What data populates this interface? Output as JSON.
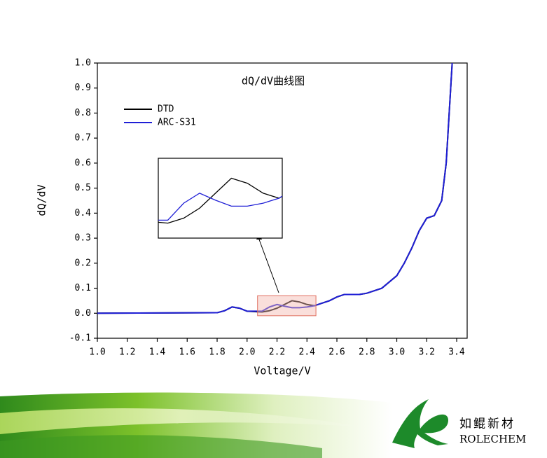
{
  "chart_data": {
    "type": "line",
    "title": "dQ/dV曲线图",
    "x_label": "Voltage/V",
    "y_label": "dQ/dV",
    "x": [
      1.0,
      1.8,
      1.85,
      1.9,
      1.95,
      2.0,
      2.1,
      2.15,
      2.2,
      2.25,
      2.3,
      2.35,
      2.4,
      2.45,
      2.5,
      2.55,
      2.6,
      2.65,
      2.7,
      2.75,
      2.8,
      2.9,
      3.0,
      3.05,
      3.1,
      3.15,
      3.2,
      3.25,
      3.3,
      3.33,
      3.35,
      3.37
    ],
    "series": [
      {
        "name": "DTD",
        "color": "#000000",
        "values": [
          0,
          0.002,
          0.01,
          0.025,
          0.02,
          0.008,
          0.005,
          0.01,
          0.02,
          0.035,
          0.05,
          0.045,
          0.035,
          0.03,
          0.04,
          0.05,
          0.065,
          0.075,
          0.075,
          0.075,
          0.08,
          0.1,
          0.15,
          0.2,
          0.26,
          0.33,
          0.38,
          0.39,
          0.45,
          0.6,
          0.8,
          1.0
        ]
      },
      {
        "name": "ARC-S31",
        "color": "#1f1fd6",
        "values": [
          0,
          0.002,
          0.01,
          0.025,
          0.02,
          0.008,
          0.008,
          0.025,
          0.035,
          0.028,
          0.022,
          0.022,
          0.025,
          0.03,
          0.04,
          0.05,
          0.065,
          0.075,
          0.075,
          0.075,
          0.08,
          0.1,
          0.15,
          0.2,
          0.26,
          0.33,
          0.38,
          0.39,
          0.45,
          0.6,
          0.8,
          1.0
        ]
      }
    ],
    "xlim": [
      1.0,
      3.47
    ],
    "ylim": [
      -0.1,
      1.0
    ],
    "xticks": [
      {
        "value": 1.0,
        "label": "1.0"
      },
      1.2,
      1.4,
      1.6,
      1.8,
      {
        "value": 2.0,
        "label": "2.0"
      },
      2.2,
      2.4,
      2.6,
      2.8,
      {
        "value": 3.0,
        "label": "3.0"
      },
      3.2,
      3.4
    ],
    "yticks": [
      -0.1,
      {
        "value": 0.0,
        "label": "0.0"
      },
      0.1,
      0.2,
      0.3,
      0.4,
      0.5,
      0.6,
      0.7,
      0.8,
      0.9,
      {
        "value": 1.0,
        "label": "1.0"
      }
    ],
    "inset": {
      "xlim": [
        2.07,
        2.46
      ],
      "ylim": [
        -0.01,
        0.07
      ]
    },
    "grid": false,
    "legend": "upper-left"
  },
  "logo": {
    "name_cn": "如鲲新材",
    "name_en": "ROLECHEM"
  }
}
